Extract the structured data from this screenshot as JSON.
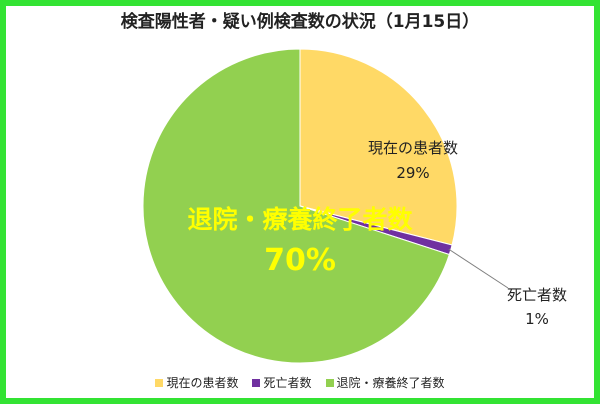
{
  "chart_data": {
    "type": "pie",
    "title": "検査陽性者・疑い例検査数の状況（1月15日）",
    "slices": [
      {
        "name": "現在の患者数",
        "value": 29,
        "label": "29%",
        "color": "#ffd966"
      },
      {
        "name": "死亡者数",
        "value": 1,
        "label": "1%",
        "color": "#7030a0"
      },
      {
        "name": "退院・療養終了者数",
        "value": 70,
        "label": "70%",
        "color": "#92d050"
      }
    ],
    "legend_position": "bottom",
    "accent_colors": {
      "border": "#33e333",
      "big_label": "#ffff00"
    }
  }
}
